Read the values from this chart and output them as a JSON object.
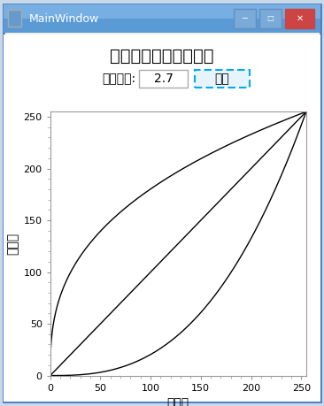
{
  "title": "ガンマ補正値のグラフ",
  "xlabel": "入力値",
  "ylabel": "出力値",
  "gamma_label": "ガンマ値:",
  "gamma_value": "2.7",
  "button_label": "表示",
  "window_title": "MainWindow",
  "xlim": [
    0,
    255
  ],
  "ylim": [
    0,
    255
  ],
  "xticks": [
    0,
    50,
    100,
    150,
    200,
    250
  ],
  "yticks": [
    0,
    50,
    100,
    150,
    200,
    250
  ],
  "gamma": 2.7,
  "line_color": "#000000",
  "win_titlebar_color": "#4a7bbf",
  "win_bg_color": "#f0f0f0",
  "win_border_color": "#4a7bbf",
  "plot_bg": "#ffffff",
  "content_bg": "#ffffff",
  "outer_bg": "#c8d8e8",
  "title_fontsize": 14,
  "label_fontsize": 10,
  "figwidth": 3.66,
  "figheight": 4.59,
  "dpi": 100
}
